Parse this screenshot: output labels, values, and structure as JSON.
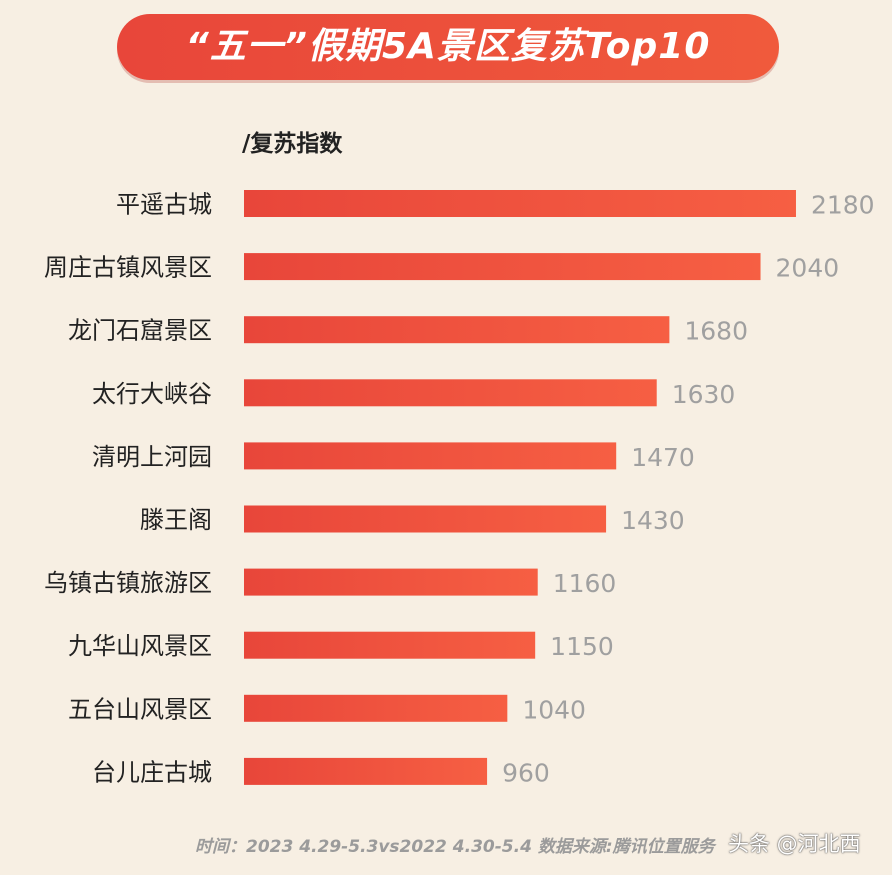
{
  "chart_data": {
    "type": "bar",
    "orientation": "horizontal",
    "title": "“五一”假期5A景区复苏Top10",
    "ylabel": "/复苏指数",
    "categories": [
      "平遥古城",
      "周庄古镇风景区",
      "龙门石窟景区",
      "太行大峡谷",
      "清明上河园",
      "滕王阁",
      "乌镇古镇旅游区",
      "九华山风景区",
      "五台山风景区",
      "台儿庄古城"
    ],
    "values": [
      2180,
      2040,
      1680,
      1630,
      1470,
      1430,
      1160,
      1150,
      1040,
      960
    ],
    "value_labels": [
      "2180",
      "2040",
      "1680",
      "1630",
      "1470",
      "1430",
      "1160",
      "1150",
      "1040",
      "960"
    ],
    "grid": false,
    "legend": "none",
    "colors": {
      "bar_start": "#e8463a",
      "bar_end": "#f65f43",
      "value_text": "#a0a0a0",
      "category_text": "#222222"
    }
  },
  "footer": {
    "note": "时间：2023 4.29-5.3vs2022 4.30-5.4  数据来源:腾讯位置服务",
    "watermark": "头条 @河北西"
  }
}
